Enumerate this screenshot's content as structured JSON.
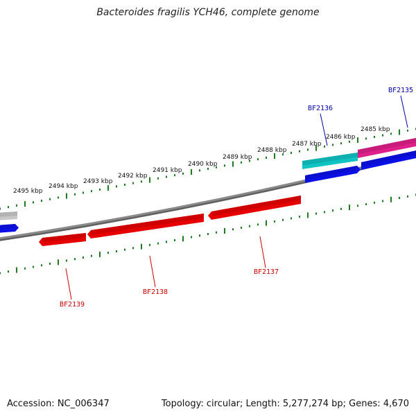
{
  "title": "Bacteroides fragilis YCH46, complete genome",
  "footer": {
    "accession": "Accession: NC_006347",
    "summary": "Topology: circular; Length: 5,277,274 bp; Genes: 4,670"
  },
  "colors": {
    "backbone": "#8a8a8a",
    "ticks": "#1e7a1e",
    "forward_label": "#0000aa",
    "reverse_label": "#cc0000",
    "blue_gene": "#0a10e6",
    "red_gene": "#e60000",
    "teal_gene": "#10c4c4",
    "magenta_gene": "#e0208a",
    "grey_gene": "#c8c8c8"
  },
  "scale": {
    "labels": [
      "2485 kbp",
      "2486 kbp",
      "2487 kbp",
      "2488 kbp",
      "2489 kbp",
      "2490 kbp",
      "2491 kbp",
      "2492 kbp",
      "2493 kbp",
      "2494 kbp",
      "2495 kbp"
    ]
  },
  "genes": [
    {
      "name": "BF2135",
      "strand": "forward",
      "color": "blue_gene"
    },
    {
      "name": "BF2136",
      "strand": "forward",
      "color": "blue_gene"
    },
    {
      "name": "BF2137",
      "strand": "reverse",
      "color": "red_gene"
    },
    {
      "name": "BF2138",
      "strand": "reverse",
      "color": "red_gene"
    },
    {
      "name": "BF2139",
      "strand": "reverse",
      "color": "red_gene"
    }
  ]
}
